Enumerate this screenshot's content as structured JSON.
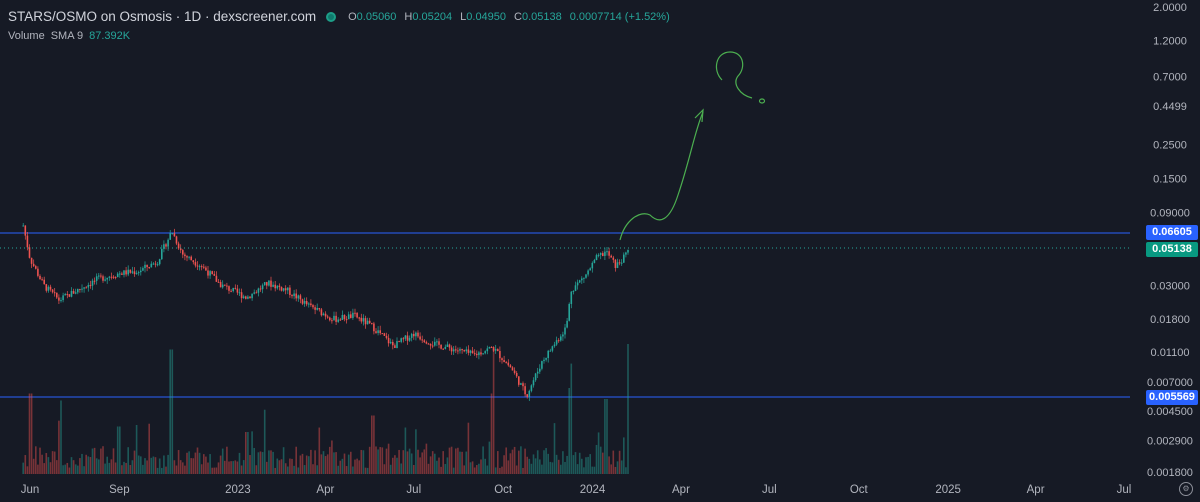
{
  "header": {
    "symbol": "STARS/OSMO on Osmosis · 1D · dexscreener.com",
    "ohlc": [
      {
        "k": "O",
        "v": "0.05060"
      },
      {
        "k": "H",
        "v": "0.05204"
      },
      {
        "k": "L",
        "v": "0.04950"
      },
      {
        "k": "C",
        "v": "0.05138"
      },
      {
        "k": "",
        "v": "0.0007714 (+1.52%)"
      }
    ]
  },
  "volume": {
    "label": "Volume",
    "sma": "SMA 9",
    "value": "87.392K"
  },
  "price_tags": {
    "resistance": "0.06605",
    "current": "0.05138",
    "support": "0.005569"
  },
  "colors": {
    "background": "#161a25",
    "up": "#26a69a",
    "down": "#ef5350",
    "hline": "#2962ff",
    "drawing": "#4caf50"
  },
  "icons": {
    "settings": "gear-icon"
  },
  "chart_data": {
    "type": "candlestick",
    "y_scale": "log",
    "y_ticks": [
      "2.0000",
      "1.2000",
      "0.7000",
      "0.4499",
      "0.2500",
      "0.1500",
      "0.09000",
      "0.03000",
      "0.01800",
      "0.01100",
      "0.007000",
      "0.004500",
      "0.002900",
      "0.001800"
    ],
    "x_ticks": [
      "Jun",
      "Sep",
      "2023",
      "Apr",
      "Jul",
      "Oct",
      "2024",
      "Apr",
      "Jul",
      "Oct",
      "2025",
      "Apr",
      "Jul"
    ],
    "horizontal_lines": [
      0.06605,
      0.005569
    ],
    "current_price": 0.05138,
    "price_path": [
      {
        "date": "2022-05-25",
        "price": 0.074
      },
      {
        "date": "2022-06-01",
        "price": 0.045
      },
      {
        "date": "2022-06-15",
        "price": 0.03
      },
      {
        "date": "2022-07-01",
        "price": 0.024
      },
      {
        "date": "2022-07-20",
        "price": 0.028
      },
      {
        "date": "2022-08-10",
        "price": 0.033
      },
      {
        "date": "2022-09-01",
        "price": 0.036
      },
      {
        "date": "2022-09-20",
        "price": 0.037
      },
      {
        "date": "2022-10-10",
        "price": 0.043
      },
      {
        "date": "2022-10-25",
        "price": 0.068
      },
      {
        "date": "2022-11-05",
        "price": 0.048
      },
      {
        "date": "2022-11-25",
        "price": 0.04
      },
      {
        "date": "2022-12-15",
        "price": 0.03
      },
      {
        "date": "2023-01-10",
        "price": 0.025
      },
      {
        "date": "2023-02-01",
        "price": 0.031
      },
      {
        "date": "2023-02-20",
        "price": 0.028
      },
      {
        "date": "2023-03-15",
        "price": 0.022
      },
      {
        "date": "2023-04-10",
        "price": 0.018
      },
      {
        "date": "2023-05-01",
        "price": 0.019
      },
      {
        "date": "2023-05-20",
        "price": 0.016
      },
      {
        "date": "2023-06-10",
        "price": 0.012
      },
      {
        "date": "2023-07-01",
        "price": 0.0145
      },
      {
        "date": "2023-07-20",
        "price": 0.0125
      },
      {
        "date": "2023-08-10",
        "price": 0.0115
      },
      {
        "date": "2023-09-01",
        "price": 0.0105
      },
      {
        "date": "2023-09-20",
        "price": 0.0118
      },
      {
        "date": "2023-10-10",
        "price": 0.0085
      },
      {
        "date": "2023-10-25",
        "price": 0.0057
      },
      {
        "date": "2023-11-10",
        "price": 0.0095
      },
      {
        "date": "2023-11-25",
        "price": 0.013
      },
      {
        "date": "2023-12-05",
        "price": 0.016
      },
      {
        "date": "2023-12-10",
        "price": 0.028
      },
      {
        "date": "2023-12-25",
        "price": 0.035
      },
      {
        "date": "2024-01-05",
        "price": 0.045
      },
      {
        "date": "2024-01-15",
        "price": 0.05
      },
      {
        "date": "2024-01-25",
        "price": 0.04
      },
      {
        "date": "2024-02-03",
        "price": 0.046
      },
      {
        "date": "2024-02-07",
        "price": 0.05138
      }
    ],
    "volume_bars": [
      {
        "date": "2022-06-01",
        "v": 0.55
      },
      {
        "date": "2022-07-01",
        "v": 0.3
      },
      {
        "date": "2022-09-01",
        "v": 0.25
      },
      {
        "date": "2022-10-25",
        "v": 0.95
      },
      {
        "date": "2023-01-10",
        "v": 0.2
      },
      {
        "date": "2023-05-20",
        "v": 0.35
      },
      {
        "date": "2023-09-20",
        "v": 0.55
      },
      {
        "date": "2023-12-10",
        "v": 0.6
      },
      {
        "date": "2024-01-15",
        "v": 0.5
      },
      {
        "date": "2024-02-07",
        "v": 1.0
      }
    ]
  }
}
